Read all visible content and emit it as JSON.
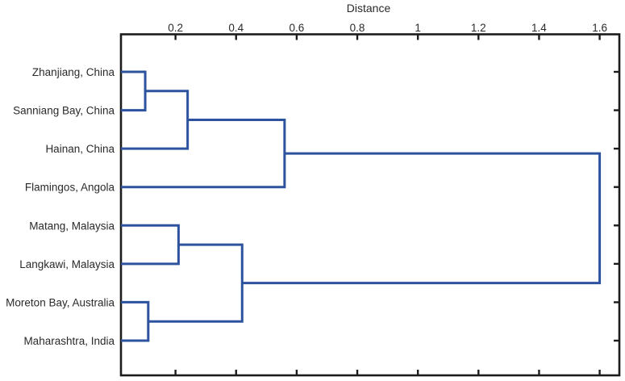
{
  "chart_data": {
    "type": "dendrogram",
    "orientation": "horizontal",
    "axis": {
      "label": "Distance",
      "position": "top",
      "min": 0.02,
      "max": 1.665,
      "tick_values": [
        0.2,
        0.4,
        0.6,
        0.8,
        1.0,
        1.2,
        1.4,
        1.6
      ],
      "tick_labels": [
        "0.2",
        "0.4",
        "0.6",
        "0.8",
        "1",
        "1.2",
        "1.4",
        "1.6"
      ]
    },
    "leaves": [
      "Zhanjiang, China",
      "Sanniang Bay, China",
      "Hainan, China",
      "Flamingos, Angola",
      "Matang, Malaysia",
      "Langkawi, Malaysia",
      "Moreton Bay, Australia",
      "Maharashtra, India"
    ],
    "merges": [
      {
        "id": "c1",
        "children": [
          "Zhanjiang, China",
          "Sanniang Bay, China"
        ],
        "distance": 0.1
      },
      {
        "id": "c2",
        "children": [
          "c1",
          "Hainan, China"
        ],
        "distance": 0.24
      },
      {
        "id": "c3",
        "children": [
          "c2",
          "Flamingos, Angola"
        ],
        "distance": 0.56
      },
      {
        "id": "c4",
        "children": [
          "Matang, Malaysia",
          "Langkawi, Malaysia"
        ],
        "distance": 0.21
      },
      {
        "id": "c5",
        "children": [
          "Moreton Bay, Australia",
          "Maharashtra, India"
        ],
        "distance": 0.11
      },
      {
        "id": "c6",
        "children": [
          "c4",
          "c5"
        ],
        "distance": 0.42
      },
      {
        "id": "root",
        "children": [
          "c3",
          "c6"
        ],
        "distance": 1.6
      }
    ],
    "colors": {
      "link": "#2d539e",
      "frame": "#1c1c1c",
      "text": "#2a2a2a",
      "background": "#ffffff"
    }
  }
}
